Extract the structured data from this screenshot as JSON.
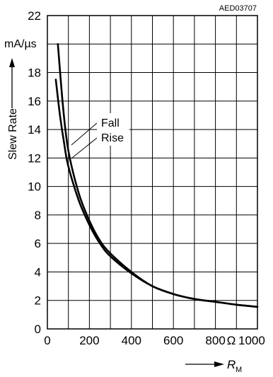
{
  "chart_data": {
    "type": "line",
    "code": "AED03707",
    "ylabel": "Slew Rate",
    "yunit": "mA/µs",
    "xlabel_var": "R",
    "xlabel_sub": "M",
    "xunit": "Ω",
    "xlim": [
      0,
      1000
    ],
    "ylim": [
      0,
      22
    ],
    "xticks": [
      0,
      200,
      400,
      600,
      800,
      1000
    ],
    "xtick_labels": [
      "0",
      "200",
      "400",
      "600",
      "800",
      "1000"
    ],
    "yticks": [
      0,
      2,
      4,
      6,
      8,
      10,
      12,
      14,
      16,
      18,
      20,
      22
    ],
    "ytick_labels": [
      "0",
      "2",
      "4",
      "6",
      "8",
      "10",
      "12",
      "14",
      "16",
      "18",
      "",
      "22"
    ],
    "grid": true,
    "series": [
      {
        "name": "Fall",
        "x": [
          50,
          75,
          100,
          150,
          200,
          250,
          300,
          400,
          500,
          600,
          700,
          800,
          900,
          1000
        ],
        "y": [
          20.0,
          15.5,
          12.5,
          9.5,
          7.6,
          6.2,
          5.3,
          4.0,
          3.0,
          2.45,
          2.1,
          1.9,
          1.7,
          1.55
        ]
      },
      {
        "name": "Rise",
        "x": [
          40,
          60,
          80,
          100,
          150,
          200,
          250,
          300,
          400,
          500,
          600,
          700,
          800,
          900,
          1000
        ],
        "y": [
          17.5,
          15.0,
          13.0,
          11.4,
          9.0,
          7.3,
          6.0,
          5.1,
          3.9,
          3.0,
          2.45,
          2.1,
          1.9,
          1.7,
          1.55
        ]
      }
    ]
  }
}
